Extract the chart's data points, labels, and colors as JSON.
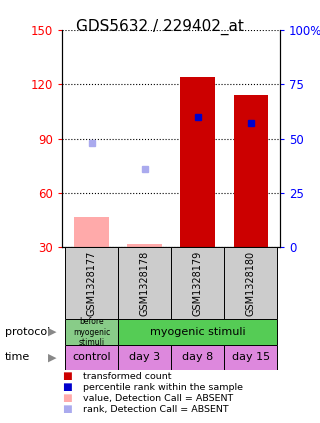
{
  "title": "GDS5632 / 229402_at",
  "samples": [
    "GSM1328177",
    "GSM1328178",
    "GSM1328179",
    "GSM1328180"
  ],
  "ylim_left": [
    30,
    150
  ],
  "ylim_right": [
    0,
    100
  ],
  "yticks_left": [
    30,
    60,
    90,
    120,
    150
  ],
  "yticks_right": [
    0,
    25,
    50,
    75,
    100
  ],
  "ytick_labels_right": [
    "0",
    "25",
    "50",
    "75",
    "100%"
  ],
  "bar_values": [
    47,
    32,
    124,
    114
  ],
  "bar_absent": [
    true,
    true,
    false,
    false
  ],
  "rank_percent": [
    48,
    36,
    60,
    57
  ],
  "rank_absent": [
    true,
    true,
    false,
    false
  ],
  "protocol_labels": [
    "before\nmyogenic\nstimuli",
    "myogenic stimuli"
  ],
  "protocol_colors": [
    "#88cc88",
    "#55cc55"
  ],
  "time_labels": [
    "control",
    "day 3",
    "day 8",
    "day 15"
  ],
  "time_color": "#dd88dd",
  "bar_color_present": "#cc0000",
  "bar_color_absent": "#ffaaaa",
  "rank_color_present": "#0000cc",
  "rank_color_absent": "#aaaaee",
  "title_fontsize": 11
}
